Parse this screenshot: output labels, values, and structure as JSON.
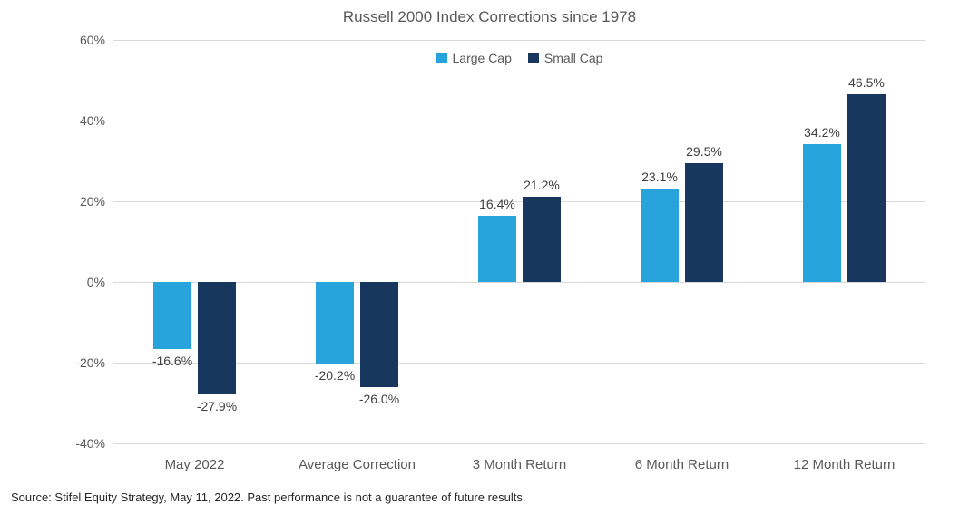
{
  "chart_data": {
    "type": "bar",
    "title": "Russell 2000  Index Corrections since 1978",
    "categories": [
      "May 2022",
      "Average Correction",
      "3 Month Return",
      "6 Month Return",
      "12 Month Return"
    ],
    "series": [
      {
        "name": "Large Cap",
        "color": "#29a3dc",
        "values": [
          -16.6,
          -20.2,
          16.4,
          23.1,
          34.2
        ]
      },
      {
        "name": "Small Cap",
        "color": "#17375e",
        "values": [
          -27.9,
          -26.0,
          21.2,
          29.5,
          46.5
        ]
      }
    ],
    "data_labels": [
      [
        "-16.6%",
        "-20.2%",
        "16.4%",
        "23.1%",
        "34.2%"
      ],
      [
        "-27.9%",
        "-26.0%",
        "21.2%",
        "29.5%",
        "46.5%"
      ]
    ],
    "ylim": [
      -40,
      60
    ],
    "yticks": [
      60,
      40,
      20,
      0,
      -20,
      -40
    ],
    "ytick_labels": [
      "60%",
      "40%",
      "20%",
      "0%",
      "-20%",
      "-40%"
    ],
    "grid": true,
    "legend_position": "top-center",
    "xlabel": "",
    "ylabel": ""
  },
  "source_note": "Source: Stifel Equity Strategy, May 11, 2022. Past performance is not a guarantee of future results."
}
